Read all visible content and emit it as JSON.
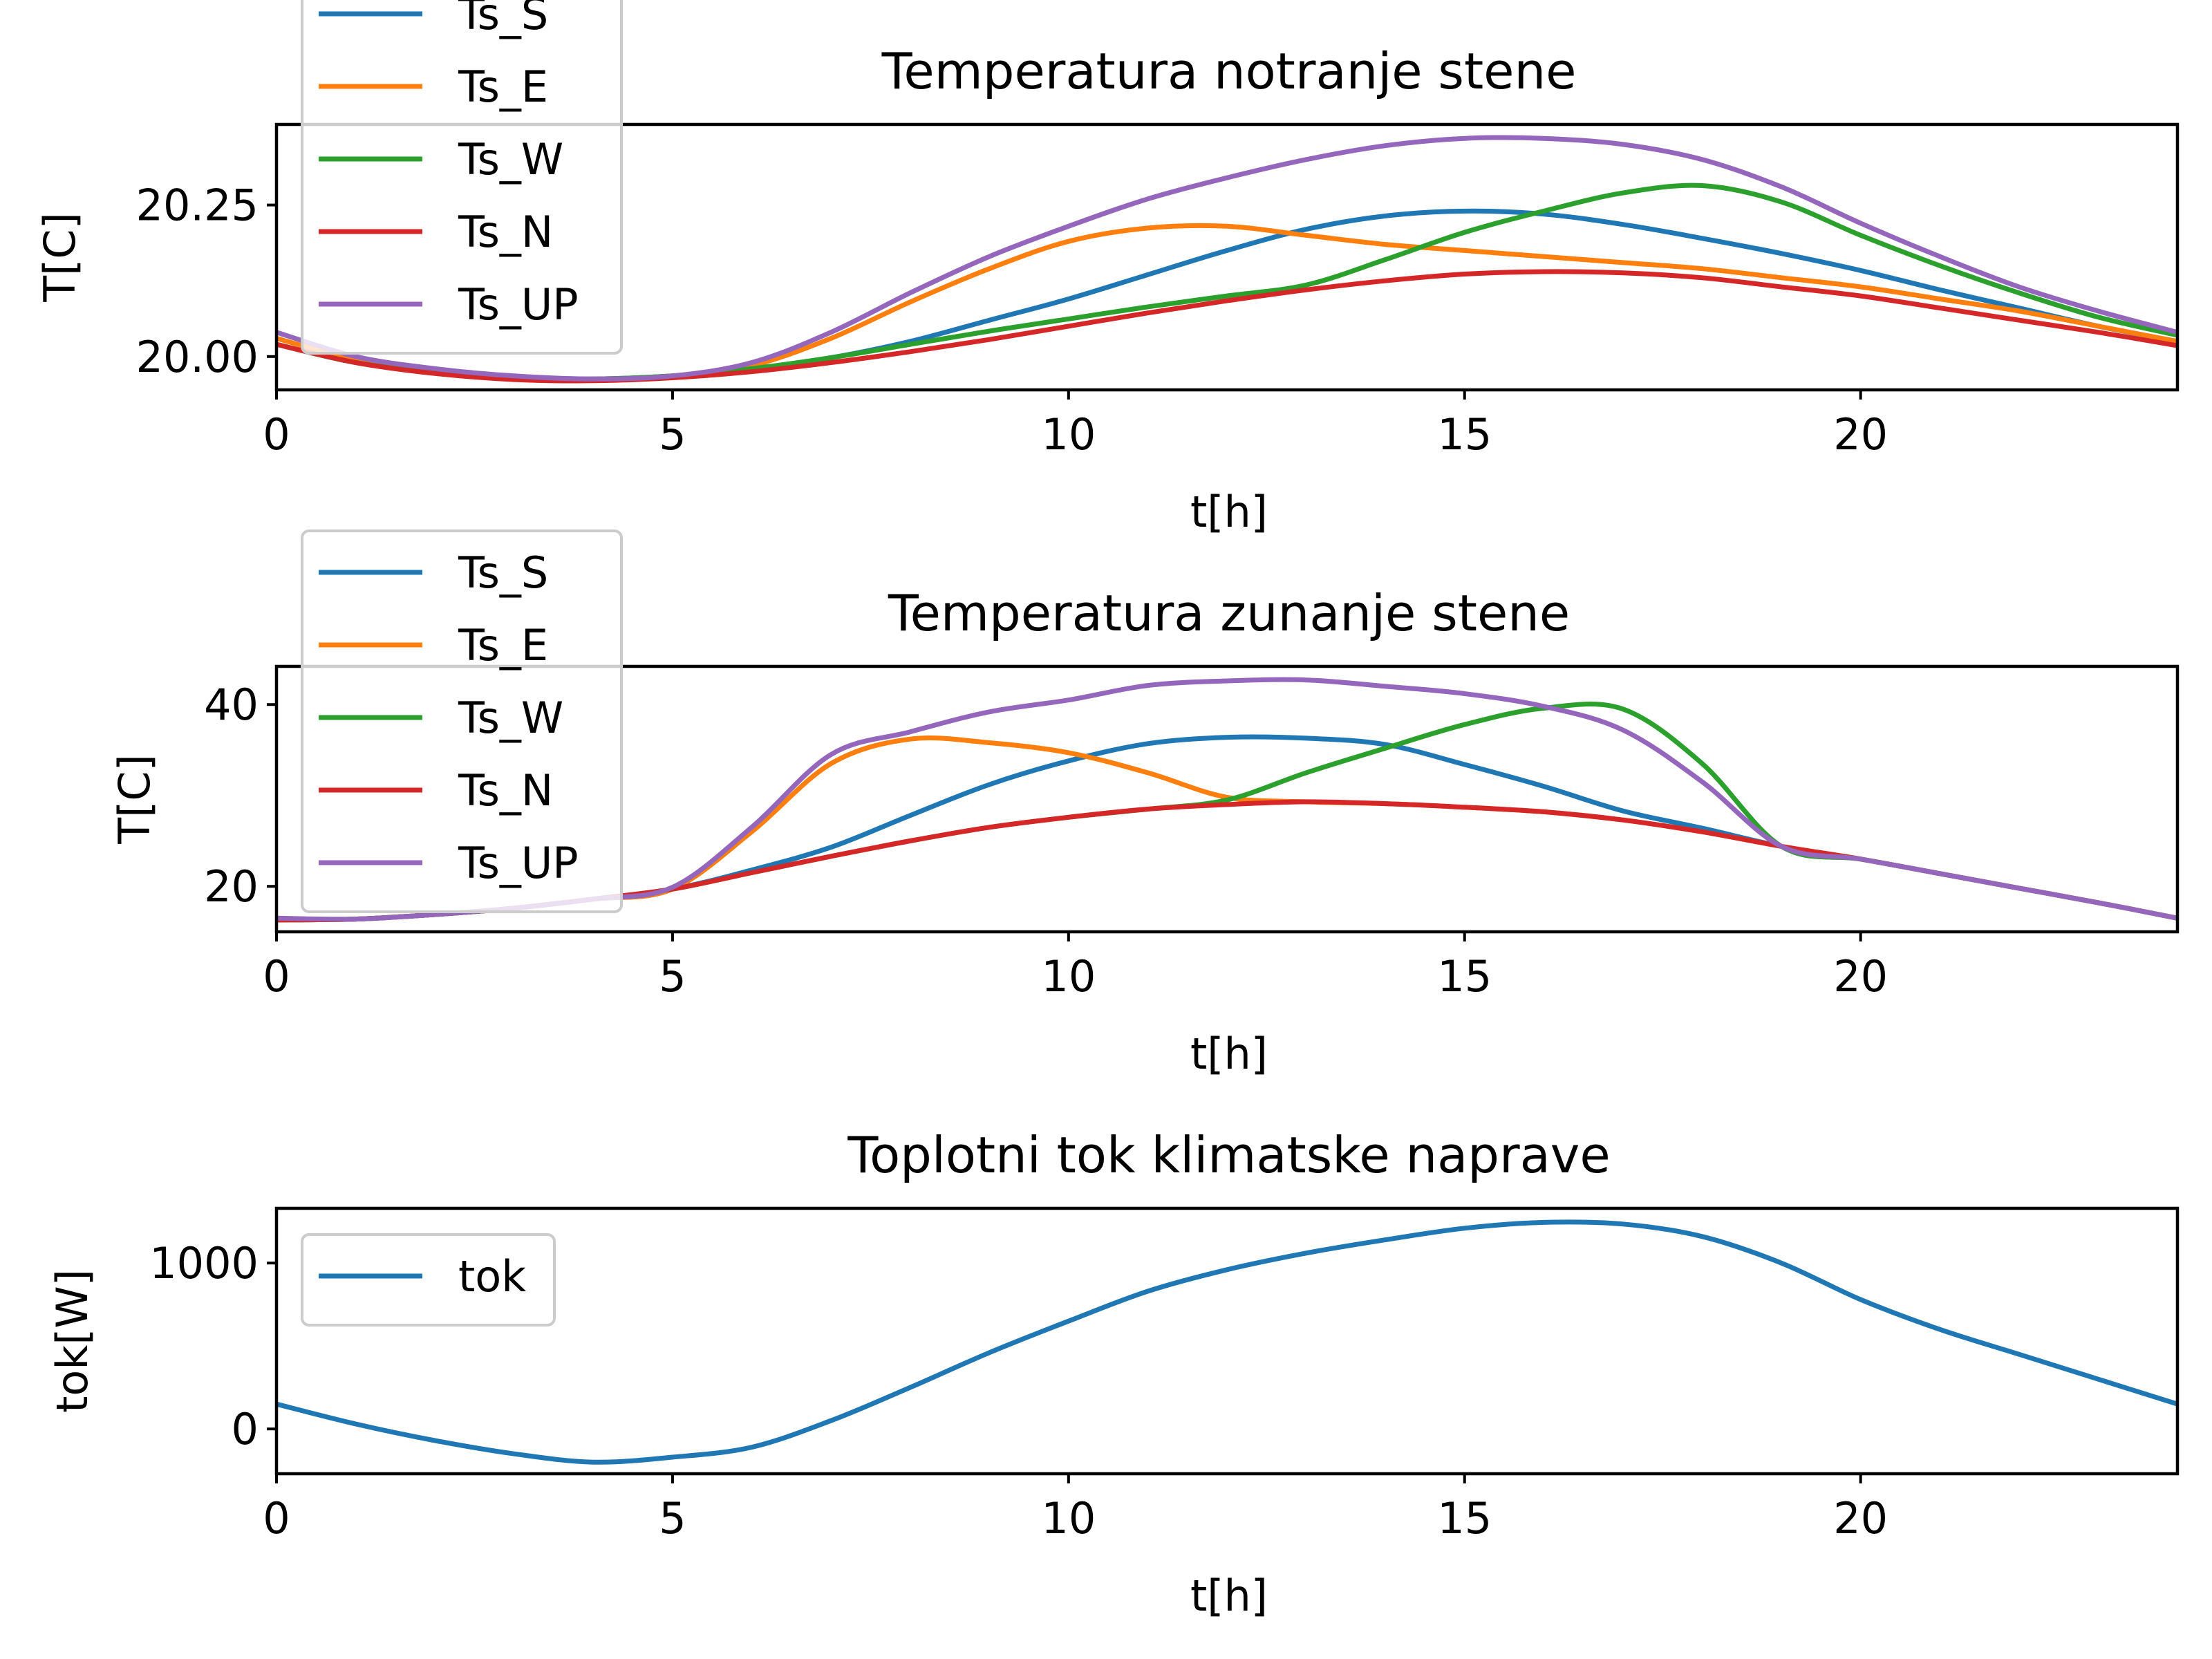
{
  "chart_data": [
    {
      "type": "line",
      "title": "Temperatura notranje stene",
      "xlabel": "t[h]",
      "ylabel": "T[C]",
      "xlim": [
        0,
        24
      ],
      "ylim": [
        19.945,
        20.383
      ],
      "xticks": [
        0,
        5,
        10,
        15,
        20
      ],
      "yticks": [
        20.0,
        20.25
      ],
      "ytick_labels": [
        "20.00",
        "20.25"
      ],
      "legend": "top-left",
      "series": [
        {
          "name": "Ts_S",
          "color": "#1f77b4",
          "x": [
            0,
            1,
            2,
            3,
            4,
            5,
            6,
            7,
            8,
            9,
            10,
            11,
            12,
            13,
            14,
            15,
            16,
            17,
            18,
            19,
            20,
            21,
            22,
            23,
            24
          ],
          "y": [
            20.02,
            19.99,
            19.975,
            19.965,
            19.963,
            19.968,
            19.98,
            19.998,
            20.025,
            20.06,
            20.095,
            20.135,
            20.175,
            20.21,
            20.232,
            20.24,
            20.235,
            20.218,
            20.195,
            20.17,
            20.142,
            20.11,
            20.08,
            20.05,
            20.025
          ]
        },
        {
          "name": "Ts_E",
          "color": "#ff7f0e",
          "x": [
            0,
            1,
            2,
            3,
            4,
            5,
            6,
            7,
            8,
            9,
            10,
            11,
            12,
            13,
            14,
            15,
            16,
            17,
            18,
            19,
            20,
            21,
            22,
            23,
            24
          ],
          "y": [
            20.03,
            19.995,
            19.975,
            19.965,
            19.963,
            19.968,
            19.985,
            20.03,
            20.09,
            20.145,
            20.19,
            20.212,
            20.215,
            20.2,
            20.185,
            20.175,
            20.165,
            20.155,
            20.145,
            20.13,
            20.115,
            20.095,
            20.075,
            20.05,
            20.025
          ]
        },
        {
          "name": "Ts_W",
          "color": "#2ca02c",
          "x": [
            0,
            1,
            2,
            3,
            4,
            5,
            6,
            7,
            8,
            9,
            10,
            11,
            12,
            13,
            14,
            15,
            16,
            17,
            18,
            19,
            20,
            21,
            22,
            23,
            24
          ],
          "y": [
            20.02,
            19.99,
            19.975,
            19.965,
            19.963,
            19.968,
            19.98,
            19.998,
            20.02,
            20.042,
            20.062,
            20.082,
            20.1,
            20.118,
            20.16,
            20.205,
            20.24,
            20.27,
            20.282,
            20.255,
            20.2,
            20.15,
            20.105,
            20.065,
            20.035
          ]
        },
        {
          "name": "Ts_N",
          "color": "#d62728",
          "x": [
            0,
            1,
            2,
            3,
            4,
            5,
            6,
            7,
            8,
            9,
            10,
            11,
            12,
            13,
            14,
            15,
            16,
            17,
            18,
            19,
            20,
            21,
            22,
            23,
            24
          ],
          "y": [
            20.02,
            19.99,
            19.972,
            19.962,
            19.96,
            19.965,
            19.975,
            19.99,
            20.008,
            20.028,
            20.05,
            20.072,
            20.092,
            20.11,
            20.125,
            20.136,
            20.14,
            20.138,
            20.13,
            20.115,
            20.1,
            20.08,
            20.06,
            20.04,
            20.018
          ]
        },
        {
          "name": "Ts_UP",
          "color": "#9467bd",
          "x": [
            0,
            1,
            2,
            3,
            4,
            5,
            6,
            7,
            8,
            9,
            10,
            11,
            12,
            13,
            14,
            15,
            16,
            17,
            18,
            19,
            20,
            21,
            22,
            23,
            24
          ],
          "y": [
            20.04,
            20.0,
            19.98,
            19.968,
            19.963,
            19.968,
            19.99,
            20.04,
            20.105,
            20.165,
            20.215,
            20.26,
            20.295,
            20.325,
            20.348,
            20.36,
            20.36,
            20.35,
            20.325,
            20.28,
            20.22,
            20.165,
            20.115,
            20.075,
            20.04
          ]
        }
      ]
    },
    {
      "type": "line",
      "title": "Temperatura zunanje stene",
      "xlabel": "t[h]",
      "ylabel": "T[C]",
      "xlim": [
        0,
        24
      ],
      "ylim": [
        15.0,
        44.2
      ],
      "xticks": [
        0,
        5,
        10,
        15,
        20
      ],
      "yticks": [
        20,
        40
      ],
      "ytick_labels": [
        "20",
        "40"
      ],
      "legend": "top-left",
      "series": [
        {
          "name": "Ts_S",
          "color": "#1f77b4",
          "x": [
            0,
            1,
            2,
            3,
            4,
            5,
            6,
            7,
            8,
            9,
            10,
            11,
            12,
            13,
            14,
            15,
            16,
            17,
            18,
            19,
            20,
            21,
            22,
            23,
            24
          ],
          "y": [
            16.3,
            16.4,
            16.9,
            17.6,
            18.6,
            19.7,
            21.8,
            24.3,
            27.8,
            31.2,
            33.8,
            35.7,
            36.4,
            36.3,
            35.6,
            33.4,
            31.0,
            28.3,
            26.4,
            24.4,
            23.0,
            21.4,
            19.8,
            18.2,
            16.5
          ]
        },
        {
          "name": "Ts_E",
          "color": "#ff7f0e",
          "x": [
            0,
            1,
            2,
            3,
            4,
            5,
            6,
            7,
            8,
            9,
            10,
            11,
            12,
            13,
            14,
            15,
            16,
            17,
            18,
            19,
            20,
            21,
            22,
            23,
            24
          ],
          "y": [
            16.3,
            16.4,
            16.9,
            17.6,
            18.6,
            19.7,
            26.0,
            33.5,
            36.2,
            35.8,
            34.7,
            32.5,
            29.8,
            29.3,
            29.1,
            28.7,
            28.2,
            27.3,
            26.0,
            24.4,
            23.0,
            21.4,
            19.8,
            18.2,
            16.5
          ]
        },
        {
          "name": "Ts_W",
          "color": "#2ca02c",
          "x": [
            0,
            1,
            2,
            3,
            4,
            5,
            6,
            7,
            8,
            9,
            10,
            11,
            12,
            13,
            14,
            15,
            16,
            17,
            18,
            19,
            20,
            21,
            22,
            23,
            24
          ],
          "y": [
            16.3,
            16.4,
            16.9,
            17.6,
            18.6,
            19.7,
            21.5,
            23.3,
            25.0,
            26.5,
            27.6,
            28.5,
            29.5,
            32.5,
            35.2,
            37.8,
            39.6,
            39.5,
            33.5,
            24.4,
            23.0,
            21.4,
            19.8,
            18.2,
            16.5
          ]
        },
        {
          "name": "Ts_N",
          "color": "#d62728",
          "x": [
            0,
            1,
            2,
            3,
            4,
            5,
            6,
            7,
            8,
            9,
            10,
            11,
            12,
            13,
            14,
            15,
            16,
            17,
            18,
            19,
            20,
            21,
            22,
            23,
            24
          ],
          "y": [
            16.3,
            16.4,
            16.9,
            17.6,
            18.6,
            19.7,
            21.5,
            23.3,
            25.0,
            26.5,
            27.6,
            28.5,
            29.0,
            29.3,
            29.1,
            28.7,
            28.2,
            27.3,
            26.0,
            24.4,
            23.0,
            21.4,
            19.8,
            18.2,
            16.5
          ]
        },
        {
          "name": "Ts_UP",
          "color": "#9467bd",
          "x": [
            0,
            1,
            2,
            3,
            4,
            5,
            6,
            7,
            8,
            9,
            10,
            11,
            12,
            13,
            14,
            15,
            16,
            17,
            18,
            19,
            20,
            21,
            22,
            23,
            24
          ],
          "y": [
            16.5,
            16.4,
            16.9,
            17.6,
            18.6,
            19.9,
            26.5,
            34.5,
            37.0,
            39.2,
            40.5,
            42.1,
            42.6,
            42.7,
            42.0,
            41.2,
            39.8,
            37.2,
            31.5,
            24.4,
            23.0,
            21.4,
            19.8,
            18.2,
            16.5
          ]
        }
      ]
    },
    {
      "type": "line",
      "title": "Toplotni tok klimatske naprave",
      "xlabel": "t[h]",
      "ylabel": "tok[W]",
      "xlim": [
        0,
        24
      ],
      "ylim": [
        -270,
        1330
      ],
      "xticks": [
        0,
        5,
        10,
        15,
        20
      ],
      "yticks": [
        0,
        1000
      ],
      "ytick_labels": [
        "0",
        "1000"
      ],
      "legend": "top-left",
      "series": [
        {
          "name": "tok",
          "color": "#1f77b4",
          "x": [
            0,
            1,
            2,
            3,
            4,
            5,
            6,
            7,
            8,
            9,
            10,
            11,
            12,
            13,
            14,
            15,
            16,
            17,
            18,
            19,
            20,
            21,
            22,
            23,
            24
          ],
          "y": [
            150,
            30,
            -70,
            -150,
            -200,
            -170,
            -110,
            50,
            250,
            460,
            650,
            830,
            960,
            1060,
            1140,
            1210,
            1245,
            1235,
            1160,
            1000,
            780,
            600,
            450,
            300,
            150
          ]
        }
      ]
    }
  ]
}
